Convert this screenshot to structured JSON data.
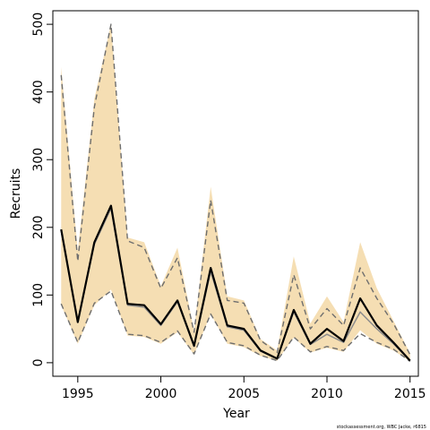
{
  "chart_data": {
    "type": "area",
    "xlabel": "Year",
    "ylabel": "Recruits",
    "xlim": [
      1993.5,
      2015.5
    ],
    "ylim": [
      -20,
      520
    ],
    "x_ticks": [
      1995,
      2000,
      2005,
      2010,
      2015
    ],
    "y_ticks": [
      0,
      100,
      200,
      300,
      400,
      500
    ],
    "grid": false,
    "colors": {
      "band": "#f5deb3",
      "median": "#000000",
      "secondary": "#8c8c8c",
      "bounds": "#6e6e6e"
    },
    "x": [
      1994,
      1995,
      1996,
      1997,
      1998,
      1999,
      2000,
      2001,
      2002,
      2003,
      2004,
      2005,
      2006,
      2007,
      2008,
      2009,
      2010,
      2011,
      2012,
      2013,
      2014,
      2015
    ],
    "band_lower": [
      85,
      28,
      85,
      108,
      40,
      38,
      28,
      45,
      12,
      72,
      28,
      23,
      10,
      3,
      37,
      15,
      22,
      16,
      48,
      28,
      18,
      2
    ],
    "band_upper": [
      437,
      165,
      390,
      500,
      185,
      178,
      113,
      170,
      47,
      260,
      98,
      92,
      35,
      18,
      157,
      58,
      98,
      60,
      178,
      110,
      62,
      14
    ],
    "series": [
      {
        "style": "median",
        "values": [
          197,
          60,
          178,
          232,
          87,
          85,
          57,
          92,
          25,
          140,
          55,
          50,
          18,
          6,
          78,
          28,
          50,
          32,
          95,
          55,
          30,
          3
        ]
      },
      {
        "style": "secondary",
        "values": [
          195,
          60,
          175,
          228,
          85,
          82,
          55,
          90,
          24,
          135,
          53,
          48,
          17,
          6,
          75,
          27,
          42,
          30,
          75,
          50,
          28,
          3
        ]
      },
      {
        "style": "upper-dashed",
        "values": [
          425,
          150,
          378,
          500,
          180,
          170,
          110,
          155,
          45,
          240,
          92,
          88,
          33,
          15,
          130,
          50,
          80,
          55,
          140,
          95,
          58,
          12
        ]
      },
      {
        "style": "lower-dashed",
        "values": [
          87,
          30,
          88,
          106,
          42,
          40,
          30,
          47,
          13,
          72,
          30,
          25,
          11,
          3,
          38,
          16,
          24,
          18,
          43,
          30,
          20,
          2
        ]
      }
    ]
  },
  "credit": "stockassessment.org, WBC Jacke, r6815"
}
